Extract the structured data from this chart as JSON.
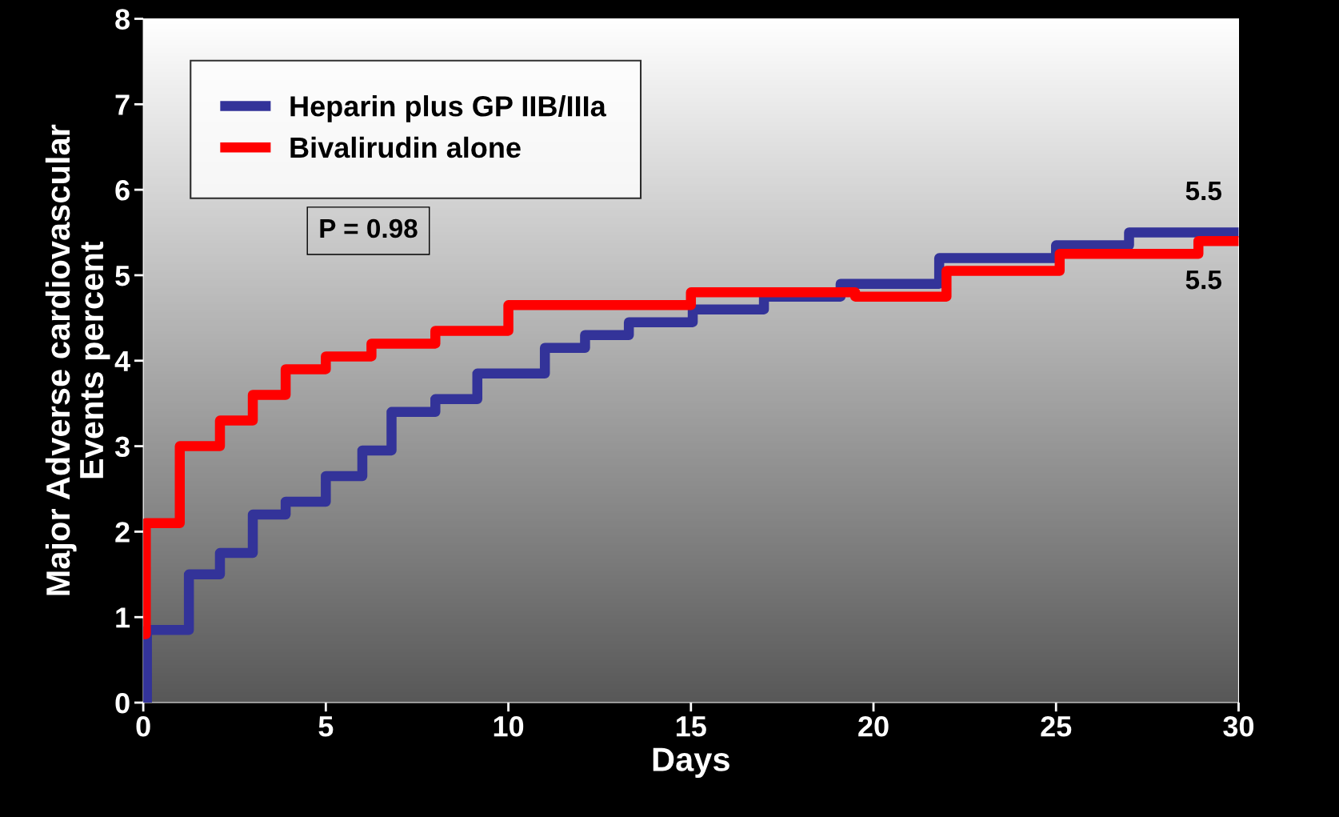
{
  "chart_data": {
    "type": "step",
    "xlabel": "Days",
    "ylabel": "Major Adverse cardiovascular\nEvents percent",
    "xlim": [
      0,
      30
    ],
    "xticks": [
      0,
      5,
      10,
      15,
      20,
      25,
      30
    ],
    "ylim": [
      0,
      8
    ],
    "yticks": [
      0,
      1,
      2,
      3,
      4,
      5,
      6,
      7,
      8
    ],
    "grid": false,
    "legend": "top left",
    "marker": "none",
    "line_style": "solid",
    "series": [
      {
        "name": "Heparin plus GP IIB/IIIa",
        "color": "#333399",
        "x": [
          0,
          0.1,
          1.25,
          2.1,
          3.0,
          3.9,
          5.0,
          6.0,
          6.8,
          8.0,
          9.15,
          11.0,
          12.1,
          13.3,
          15.05,
          17.0,
          19.1,
          21.8,
          25.0,
          27.0,
          30
        ],
        "values": [
          0,
          0.85,
          1.5,
          1.75,
          2.2,
          2.35,
          2.65,
          2.95,
          3.4,
          3.55,
          3.85,
          4.15,
          4.3,
          4.45,
          4.6,
          4.75,
          4.9,
          5.2,
          5.35,
          5.5,
          5.5
        ]
      },
      {
        "name": "Bivalirudin alone",
        "color": "#ff0000",
        "x": [
          0,
          0.07,
          1.0,
          2.1,
          3.0,
          3.9,
          5.0,
          6.25,
          8.0,
          10.0,
          15.0,
          19.5,
          22.0,
          25.1,
          28.9,
          30
        ],
        "values": [
          0.8,
          2.1,
          3.0,
          3.3,
          3.6,
          3.9,
          4.05,
          4.2,
          4.35,
          4.65,
          4.8,
          4.75,
          5.05,
          5.25,
          5.4,
          5.4
        ]
      }
    ],
    "annotations": [
      "P = 0.98",
      "5.5",
      "5.5"
    ]
  }
}
